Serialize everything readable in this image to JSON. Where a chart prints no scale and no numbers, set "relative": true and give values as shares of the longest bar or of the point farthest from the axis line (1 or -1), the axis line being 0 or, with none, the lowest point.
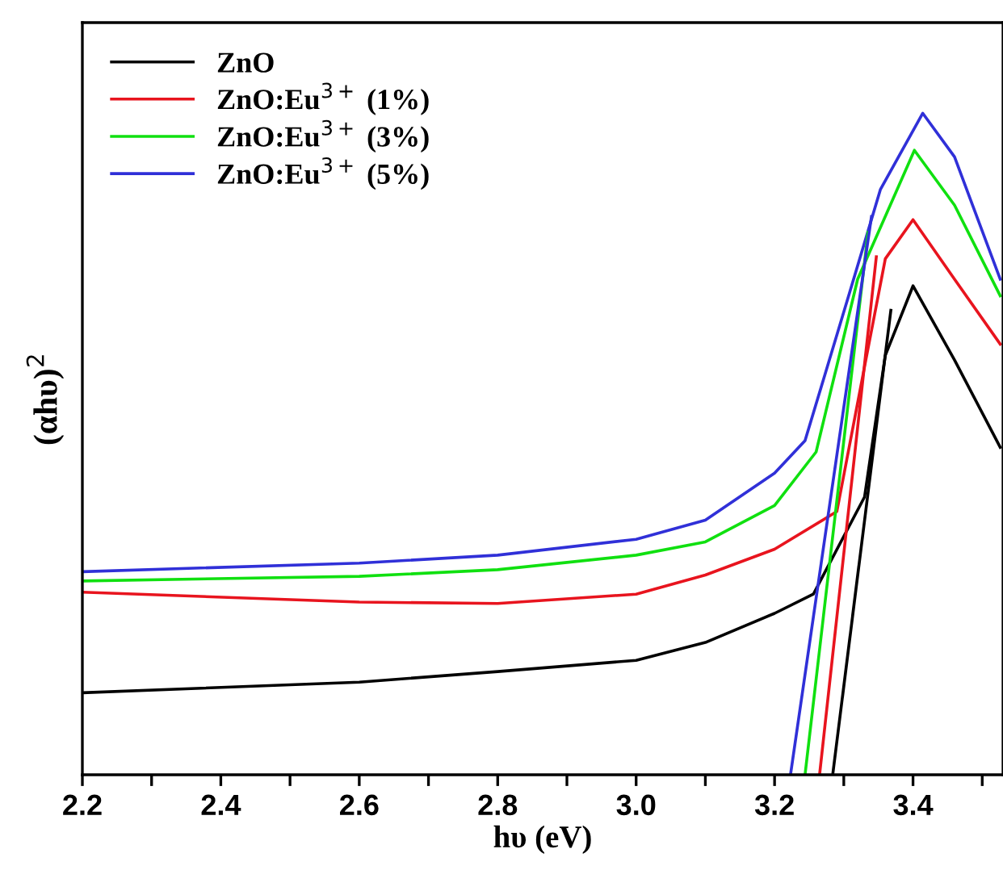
{
  "chart_data": {
    "type": "line",
    "relative": true,
    "xlabel": "hυ (eV)",
    "ylabel": "(αhυ)$^{2}$",
    "xlim": [
      2.2,
      3.53
    ],
    "xticks": [
      2.2,
      {
        "value": 2.3,
        "label": null
      },
      2.4,
      {
        "value": 2.5,
        "label": null
      },
      2.6,
      {
        "value": 2.7,
        "label": null
      },
      2.8,
      {
        "value": 2.9,
        "label": null
      },
      "3.0",
      {
        "value": 3.1,
        "label": null
      },
      3.2,
      {
        "value": 3.3,
        "label": null
      },
      3.4,
      {
        "value": 3.5,
        "label": null
      }
    ],
    "legend": "top left",
    "grid": false,
    "marker": "none",
    "line_style": "solid",
    "series": [
      {
        "name": "ZnO",
        "color": "#000000",
        "x": [
          2.2,
          2.6,
          2.8,
          3.0,
          3.1,
          3.2,
          3.256,
          3.33,
          3.36,
          3.4,
          3.46,
          3.526
        ],
        "values": [
          0.124,
          0.14,
          0.156,
          0.173,
          0.2,
          0.244,
          0.273,
          0.42,
          0.634,
          0.739,
          0.627,
          0.495
        ]
      },
      {
        "name": "ZnO:Eu$^{3+}$ (1%)",
        "color": "#e8141e",
        "x": [
          2.2,
          2.6,
          2.8,
          3.0,
          3.1,
          3.2,
          3.29,
          3.33,
          3.36,
          3.4,
          3.46,
          3.526
        ],
        "values": [
          0.276,
          0.261,
          0.259,
          0.273,
          0.302,
          0.341,
          0.398,
          0.617,
          0.78,
          0.839,
          0.749,
          0.651
        ]
      },
      {
        "name": "ZnO:Eu$^{3+}$ (3%)",
        "color": "#10e010",
        "x": [
          2.2,
          2.6,
          2.8,
          3.0,
          3.1,
          3.2,
          3.26,
          3.32,
          3.402,
          3.46,
          3.526
        ],
        "values": [
          0.293,
          0.3,
          0.31,
          0.332,
          0.352,
          0.407,
          0.488,
          0.749,
          0.944,
          0.861,
          0.724
        ]
      },
      {
        "name": "ZnO:Eu$^{3+}$ (5%)",
        "color": "#3030d8",
        "x": [
          2.2,
          2.6,
          2.8,
          3.0,
          3.1,
          3.2,
          3.244,
          3.307,
          3.353,
          3.414,
          3.46,
          3.526
        ],
        "values": [
          0.307,
          0.32,
          0.332,
          0.356,
          0.385,
          0.456,
          0.505,
          0.724,
          0.885,
          1.0,
          0.934,
          0.749
        ]
      },
      {
        "type": "line",
        "color": "#000000",
        "x": [
          3.284,
          3.368
        ],
        "values": [
          0,
          0.702
        ]
      },
      {
        "type": "line",
        "color": "#e8141e",
        "x": [
          3.265,
          3.347
        ],
        "values": [
          0,
          0.783
        ]
      },
      {
        "type": "line",
        "color": "#10e010",
        "x": [
          3.244,
          3.335
        ],
        "values": [
          0,
          0.82
        ]
      },
      {
        "type": "line",
        "color": "#3030d8",
        "x": [
          3.223,
          3.34
        ],
        "values": [
          0,
          0.844
        ]
      }
    ]
  }
}
